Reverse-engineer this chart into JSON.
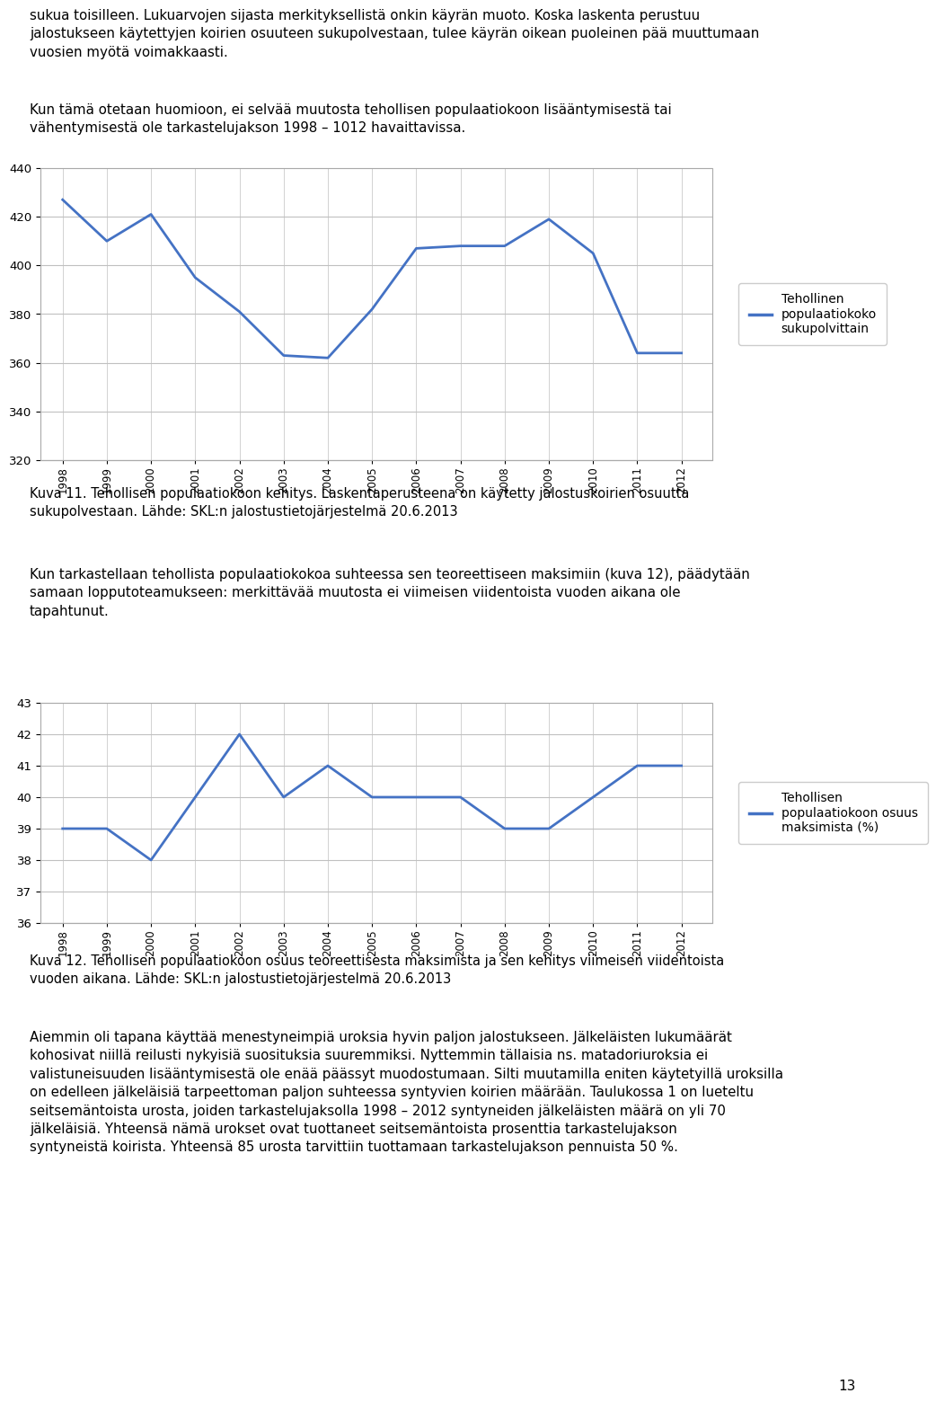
{
  "chart1": {
    "years": [
      1998,
      1999,
      2000,
      2001,
      2002,
      2003,
      2004,
      2005,
      2006,
      2007,
      2008,
      2009,
      2010,
      2011,
      2012
    ],
    "values": [
      427,
      410,
      421,
      395,
      381,
      363,
      362,
      382,
      407,
      408,
      408,
      419,
      405,
      364,
      364
    ],
    "ylim": [
      320,
      440
    ],
    "yticks": [
      320,
      340,
      360,
      380,
      400,
      420,
      440
    ],
    "legend_label": "Tehollinen\npopulaatiokoko\nsukupolvittain",
    "line_color": "#4472C4",
    "line_width": 2.0
  },
  "chart2": {
    "years": [
      1998,
      1999,
      2000,
      2001,
      2002,
      2003,
      2004,
      2005,
      2006,
      2007,
      2008,
      2009,
      2010,
      2011,
      2012
    ],
    "values": [
      39,
      39,
      38,
      40,
      42,
      40,
      41,
      40,
      40,
      40,
      39,
      39,
      40,
      41,
      41
    ],
    "ylim": [
      36,
      43
    ],
    "yticks": [
      36,
      37,
      38,
      39,
      40,
      41,
      42,
      43
    ],
    "legend_label": "Tehollisen\npopulaatiokoon osuus\nmaksimista (%)",
    "line_color": "#4472C4",
    "line_width": 2.0
  },
  "grid_color": "#c0c0c0",
  "background_color": "#ffffff",
  "text_color": "#000000",
  "page_number": "13"
}
